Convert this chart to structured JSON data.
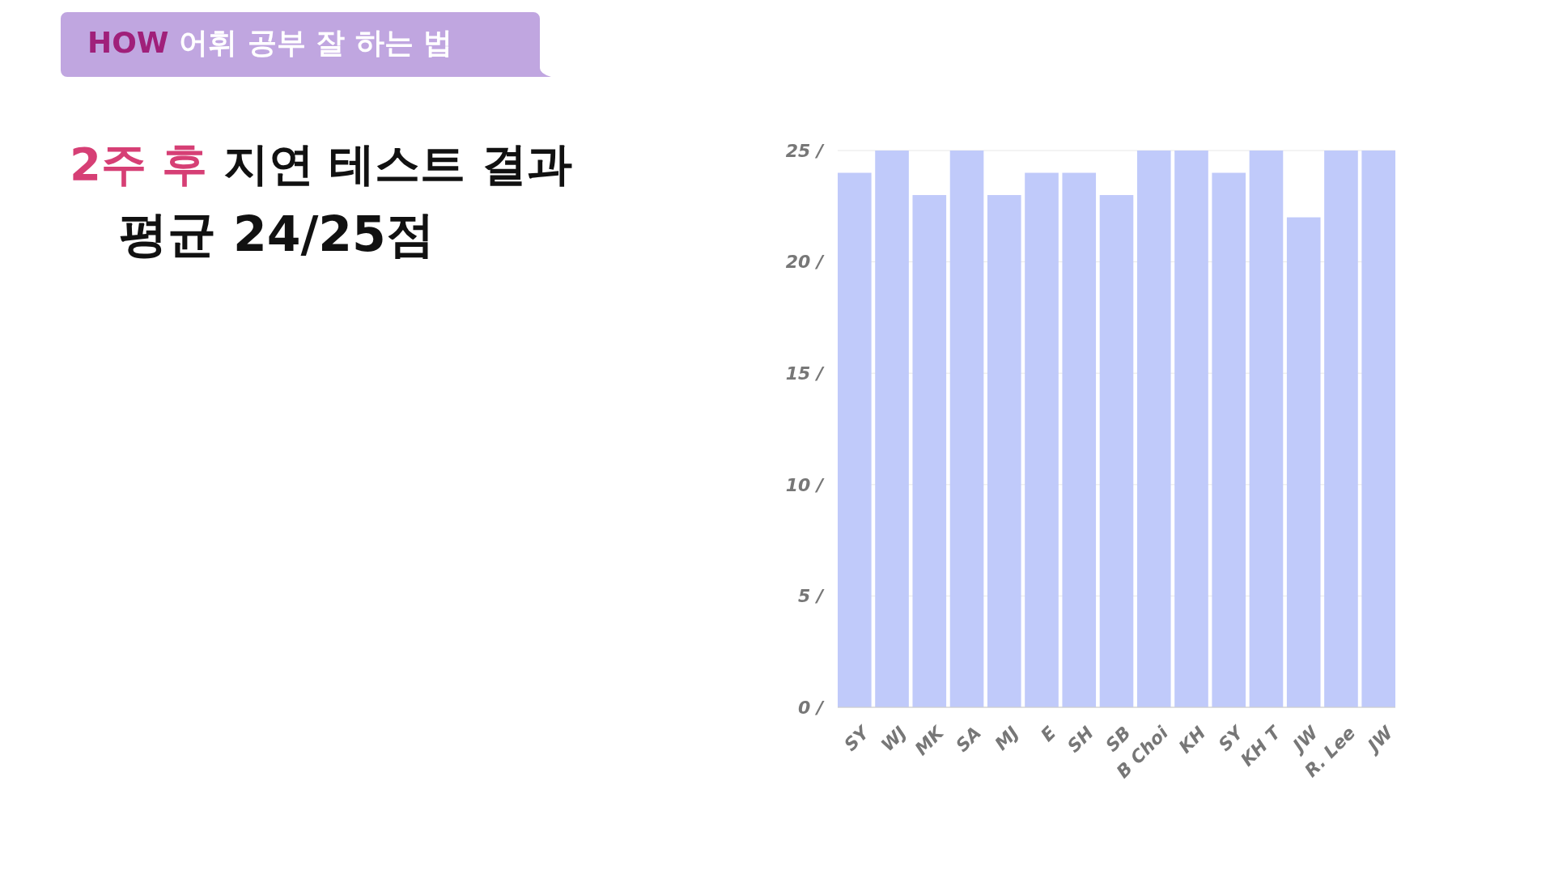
{
  "chart_data": {
    "type": "bar",
    "title": "2주 후 지연 테스트 결과",
    "subtitle": "평균 24/25점",
    "annotations": [
      "HOW 어휘 공부 잘 하는 법"
    ],
    "categories": [
      "SY",
      "WJ",
      "MK",
      "SA",
      "MJ",
      "E",
      "SH",
      "SB",
      "B Choi",
      "KH",
      "SY",
      "KH T",
      "JW",
      "R. Lee",
      "JW"
    ],
    "values": [
      24,
      25,
      23,
      25,
      23,
      24,
      24,
      23,
      25,
      25,
      24,
      25,
      22,
      25,
      25
    ],
    "color": "#c0cafa",
    "ylim": [
      0,
      25
    ],
    "yticks": [
      {
        "value": 0,
        "label": "0 /"
      },
      {
        "value": 5,
        "label": "5 /"
      },
      {
        "value": 10,
        "label": "10 /"
      },
      {
        "value": 15,
        "label": "15 /"
      },
      {
        "value": 20,
        "label": "20 /"
      },
      {
        "value": 25,
        "label": "25 /"
      }
    ],
    "grid": "y"
  }
}
